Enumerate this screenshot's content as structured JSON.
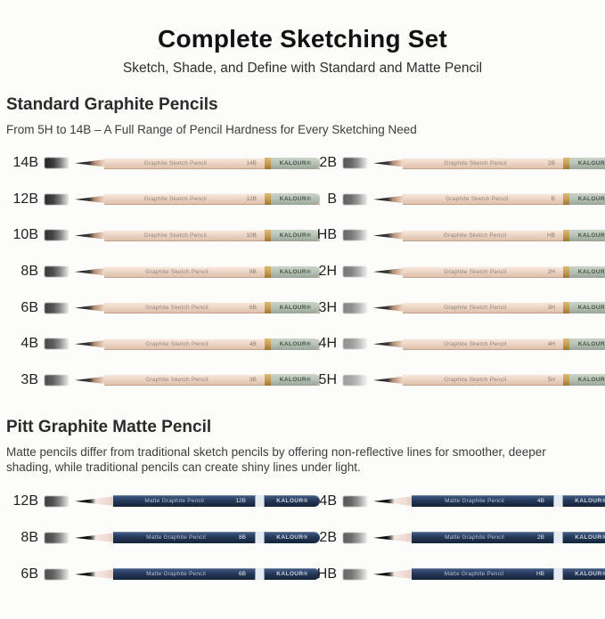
{
  "header": {
    "title": "Complete Sketching Set",
    "subtitle": "Sketch, Shade, and Define with Standard and Matte Pencil"
  },
  "standard_section": {
    "heading": "Standard Graphite Pencils",
    "description": "From 5H to 14B – A Full Range of Pencil Hardness for Every Sketching Need",
    "pencil": {
      "label": "Graphite Sketch Pencil",
      "brand": "KALOUR®",
      "body_color": "#eed6c7",
      "band_color": "#c49a4e",
      "cap_color": "#b7c1b5",
      "tip_color": "#2b2b2b"
    },
    "columns": [
      {
        "items": [
          {
            "grade": "14B",
            "swatch": "#242424"
          },
          {
            "grade": "12B",
            "swatch": "#2b2b2b"
          },
          {
            "grade": "10B",
            "swatch": "#323232"
          },
          {
            "grade": "8B",
            "swatch": "#3a3a3a"
          },
          {
            "grade": "6B",
            "swatch": "#414141"
          },
          {
            "grade": "4B",
            "swatch": "#494949"
          },
          {
            "grade": "3B",
            "swatch": "#505050"
          }
        ]
      },
      {
        "items": [
          {
            "grade": "2B",
            "swatch": "#575757"
          },
          {
            "grade": "B",
            "swatch": "#606060"
          },
          {
            "grade": "HB",
            "swatch": "#6a6a6a"
          },
          {
            "grade": "2H",
            "swatch": "#767676"
          },
          {
            "grade": "3H",
            "swatch": "#838383"
          },
          {
            "grade": "4H",
            "swatch": "#909090"
          },
          {
            "grade": "5H",
            "swatch": "#9e9e9e"
          }
        ]
      }
    ]
  },
  "matte_section": {
    "heading": "Pitt Graphite Matte Pencil",
    "description": "Matte pencils differ from traditional sketch pencils by offering non-reflective lines for smoother, deeper shading, while traditional pencils can create shiny lines under light.",
    "pencil": {
      "label": "Matte Graphite Pencil",
      "brand": "KALOUR®",
      "body_color": "#26395a",
      "band_color": "#e6ebf1",
      "text_color": "#b7c4d6",
      "wood_color": "#f7e8e3",
      "tip_color": "#0e0e0e"
    },
    "columns": [
      {
        "items": [
          {
            "grade": "12B",
            "swatch": "#3e3e3e"
          },
          {
            "grade": "8B",
            "swatch": "#474747"
          },
          {
            "grade": "6B",
            "swatch": "#4e4e4e"
          }
        ]
      },
      {
        "items": [
          {
            "grade": "4B",
            "swatch": "#565656"
          },
          {
            "grade": "2B",
            "swatch": "#5e5e5e"
          },
          {
            "grade": "HB",
            "swatch": "#676767"
          }
        ]
      }
    ]
  }
}
